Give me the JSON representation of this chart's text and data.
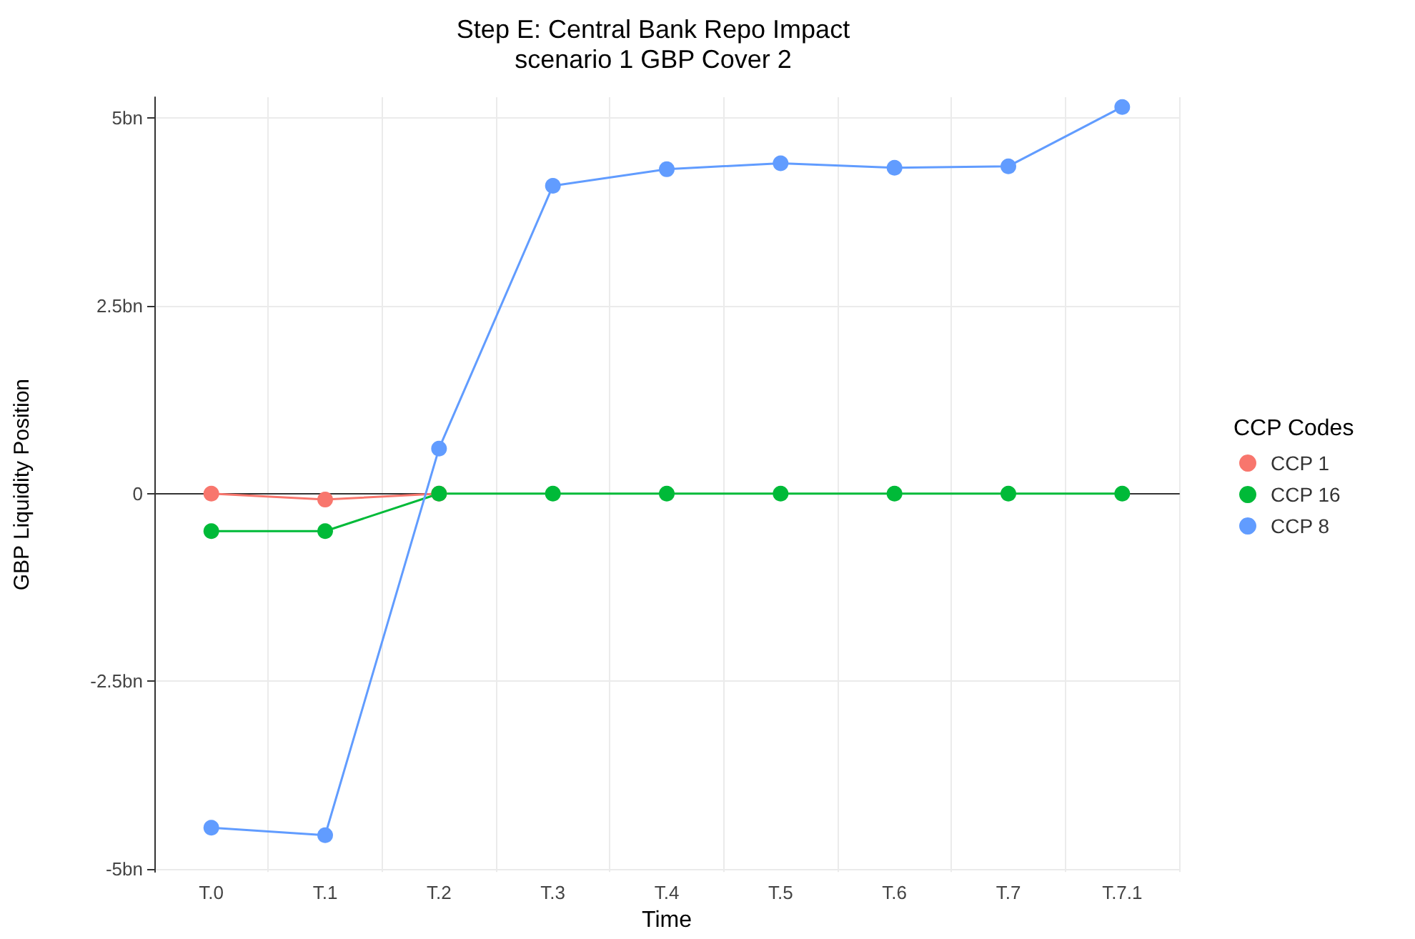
{
  "chart_data": {
    "type": "line",
    "title": "Step E: Central Bank Repo Impact\nscenario 1 GBP Cover 2",
    "xlabel": "Time",
    "ylabel": "GBP Liquidity Position",
    "legend_title": "CCP Codes",
    "categories": [
      "T.0",
      "T.1",
      "T.2",
      "T.3",
      "T.4",
      "T.5",
      "T.6",
      "T.7",
      "T.7.1"
    ],
    "series": [
      {
        "name": "CCP 1",
        "color": "#f8766d",
        "values": [
          0,
          -0.08,
          0,
          null,
          null,
          null,
          null,
          null,
          null
        ]
      },
      {
        "name": "CCP 16",
        "color": "#00ba38",
        "values": [
          -0.5,
          -0.5,
          0,
          0,
          0,
          0,
          0,
          0,
          0
        ]
      },
      {
        "name": "CCP 8",
        "color": "#619cff",
        "values": [
          -4.45,
          -4.55,
          0.6,
          4.1,
          4.32,
          4.4,
          4.34,
          4.36,
          5.15
        ]
      }
    ],
    "ylim": [
      -5.04,
      5.28
    ],
    "yticks": [
      {
        "value": -5,
        "label": "-5bn"
      },
      {
        "value": -2.5,
        "label": "-2.5bn"
      },
      {
        "value": 0,
        "label": "0"
      },
      {
        "value": 2.5,
        "label": "2.5bn"
      },
      {
        "value": 5,
        "label": "5bn"
      }
    ],
    "grid": true,
    "legend": "right",
    "marker": "circle",
    "line_style": "solid"
  }
}
